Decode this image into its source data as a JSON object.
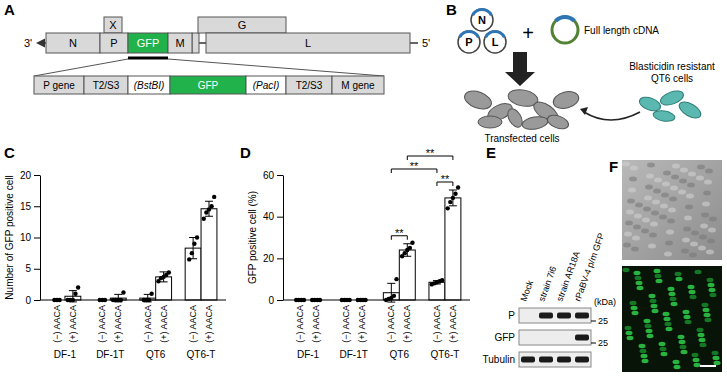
{
  "diagram_a": {
    "panel": "A",
    "end_left": "3'",
    "end_right": "5'",
    "genes": [
      "N",
      "X",
      "P",
      "GFP",
      "M",
      "G",
      "L"
    ],
    "insert": [
      "P gene",
      "T2/S3",
      "(BstBI)",
      "GFP",
      "(PacI)",
      "T2/S3",
      "M gene"
    ]
  },
  "diagram_b": {
    "panel": "B",
    "proteins": [
      "N",
      "P",
      "L"
    ],
    "plus": "+",
    "plasmid": "Full length cDNA",
    "transfected": "Transfected cells",
    "resistant": [
      "Blasticidin resistant",
      "QT6 cells"
    ]
  },
  "chart_data": [
    {
      "type": "bar",
      "title": "C",
      "y_label": "Number of GFP positive cell",
      "categories": [
        "(−) AACA",
        "(+) AACA",
        "(−) AACA",
        "(+) AACA",
        "(−) AACA",
        "(+) AACA",
        "(−) AACA",
        "(+) AACA"
      ],
      "groups": [
        "DF-1",
        "DF-1T",
        "QT6",
        "QT6-T"
      ],
      "values": [
        0,
        0.6,
        0,
        0.3,
        0.3,
        3.7,
        8.3,
        14.6
      ],
      "errors": [
        0,
        0.9,
        0,
        0.6,
        0.6,
        0.8,
        1.7,
        1.2
      ],
      "points": [
        [
          0,
          0,
          0
        ],
        [
          0,
          0,
          0,
          1,
          2
        ],
        [
          0,
          0,
          0
        ],
        [
          0,
          0,
          0,
          0,
          1.2
        ],
        [
          0,
          0,
          0,
          1
        ],
        [
          3,
          3.5,
          3.7,
          4,
          4.4
        ],
        [
          6.5,
          7.5,
          9,
          10
        ],
        [
          13,
          14,
          14.5,
          15,
          16.5
        ]
      ],
      "ylim": [
        0,
        20
      ],
      "yticks": [
        0,
        5,
        10,
        15,
        20
      ],
      "color": "#ffffff",
      "marker": "circle"
    },
    {
      "type": "bar",
      "title": "D",
      "y_label": "GFP positive cell (%)",
      "categories": [
        "(−) AACA",
        "(+) AACA",
        "(−) AACA",
        "(+) AACA",
        "(−) AACA",
        "(+) AACA",
        "(−) AACA",
        "(+) AACA"
      ],
      "groups": [
        "DF-1",
        "DF-1T",
        "QT6",
        "QT6-T"
      ],
      "values": [
        0,
        0,
        0,
        0,
        3.5,
        24,
        8.5,
        49
      ],
      "errors": [
        0,
        0,
        0,
        0,
        4.5,
        3,
        0.8,
        3.8
      ],
      "points": [
        [
          0,
          0,
          0,
          0
        ],
        [
          0,
          0,
          0,
          0
        ],
        [
          0,
          0,
          0,
          0
        ],
        [
          0,
          0,
          0,
          0
        ],
        [
          0,
          0.5,
          1,
          2,
          10
        ],
        [
          21,
          22.5,
          24,
          25,
          27.5
        ],
        [
          7.5,
          8,
          8.5,
          9,
          9.5
        ],
        [
          44,
          47,
          49,
          51,
          54
        ]
      ],
      "comparisons": [
        {
          "from": 4,
          "to": 5,
          "label": "**"
        },
        {
          "from": 6,
          "to": 7,
          "label": "**"
        },
        {
          "from": 4,
          "to": 6,
          "label": "**"
        },
        {
          "from": 5,
          "to": 7,
          "label": "**"
        }
      ],
      "ylim": [
        0,
        60
      ],
      "yticks": [
        0,
        20,
        40,
        60
      ],
      "color": "#ffffff",
      "marker": "circle"
    }
  ],
  "blot_e": {
    "panel": "E",
    "lanes": [
      "Mock",
      "strain 7i6",
      "strain AR18A",
      "rPaBV-4 p/m GFP"
    ],
    "rows": [
      {
        "label": "P",
        "bands": [
          false,
          true,
          true,
          true
        ]
      },
      {
        "label": "GFP",
        "bands": [
          false,
          false,
          false,
          true
        ]
      },
      {
        "label": "Tubulin",
        "bands": [
          true,
          true,
          true,
          true
        ]
      }
    ],
    "markers": [
      {
        "row": 0,
        "value": 25
      },
      {
        "row": 1,
        "value": 25
      }
    ],
    "unit": "(kDa)"
  },
  "image_f": {
    "panel": "F"
  }
}
